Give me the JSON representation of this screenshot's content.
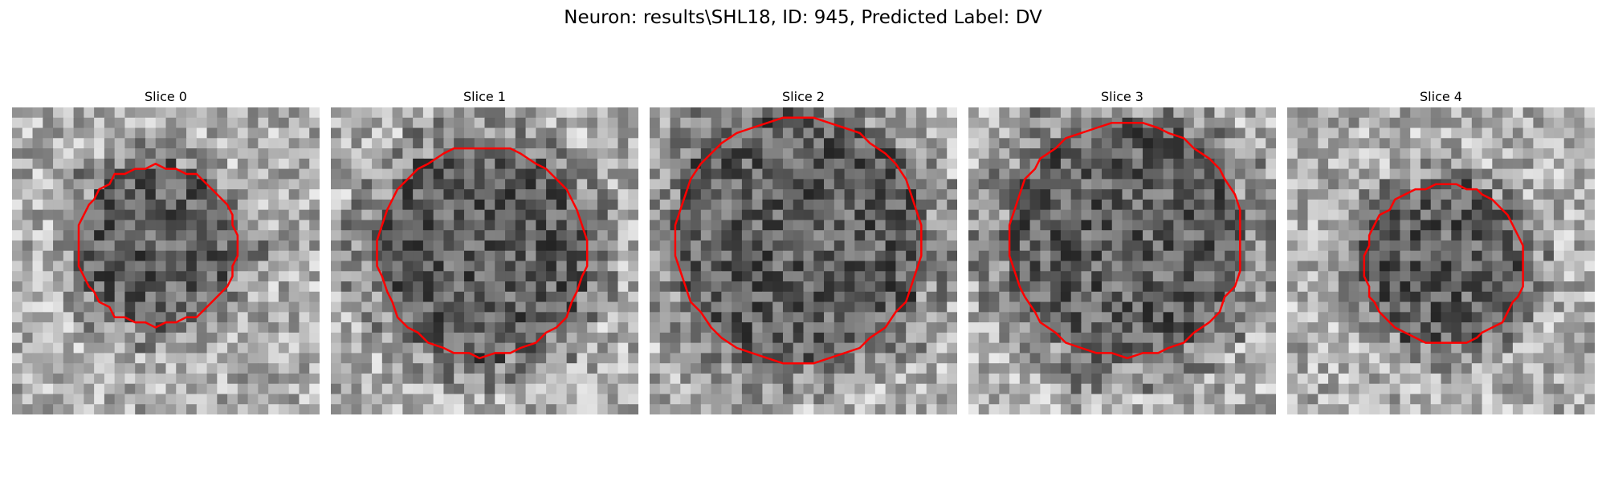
{
  "figure": {
    "title": "Neuron: results\\SHL18, ID: 945, Predicted Label: DV",
    "contour_color": "#ff0000",
    "grid_size": 30
  },
  "panels": [
    {
      "title": "Slice 0",
      "contour_radius": 0.26,
      "contour_center": [
        0.47,
        0.45
      ],
      "seed": 11
    },
    {
      "title": "Slice 1",
      "contour_radius": 0.34,
      "contour_center": [
        0.49,
        0.47
      ],
      "seed": 23
    },
    {
      "title": "Slice 2",
      "contour_radius": 0.4,
      "contour_center": [
        0.48,
        0.43
      ],
      "seed": 37
    },
    {
      "title": "Slice 3",
      "contour_radius": 0.38,
      "contour_center": [
        0.51,
        0.43
      ],
      "seed": 41
    },
    {
      "title": "Slice 4",
      "contour_radius": 0.26,
      "contour_center": [
        0.51,
        0.51
      ],
      "seed": 53
    }
  ]
}
